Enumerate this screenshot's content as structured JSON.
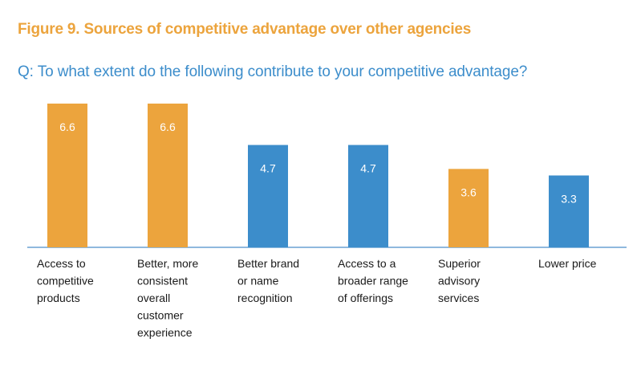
{
  "figure_title": "Figure 9. Sources of competitive advantage over other agencies",
  "question": "Q: To what extent do the following contribute to your competitive advantage?",
  "colors": {
    "orange": "#ECA43D",
    "blue": "#3C8DCB",
    "title_orange": "#ECA43D",
    "question_blue": "#3C8DCB",
    "axis": "#8FB9DE"
  },
  "chart_data": {
    "type": "bar",
    "title": "",
    "xlabel": "",
    "ylabel": "",
    "ylim": [
      0,
      6.6
    ],
    "grid": false,
    "categories": [
      [
        "Access to",
        "competitive",
        "products"
      ],
      [
        "Better, more",
        "consistent",
        "overall",
        "customer",
        "experience"
      ],
      [
        "Better brand",
        "or name",
        "recognition"
      ],
      [
        "Access to a",
        "broader range",
        "of offerings"
      ],
      [
        "Superior",
        "advisory",
        "services"
      ],
      [
        "Lower price"
      ]
    ],
    "values": [
      6.6,
      6.6,
      4.7,
      4.7,
      3.6,
      3.3
    ],
    "value_labels": [
      "6.6",
      "6.6",
      "4.7",
      "4.7",
      "3.6",
      "3.3"
    ],
    "bar_colors": [
      "orange",
      "orange",
      "blue",
      "blue",
      "orange",
      "blue"
    ]
  }
}
